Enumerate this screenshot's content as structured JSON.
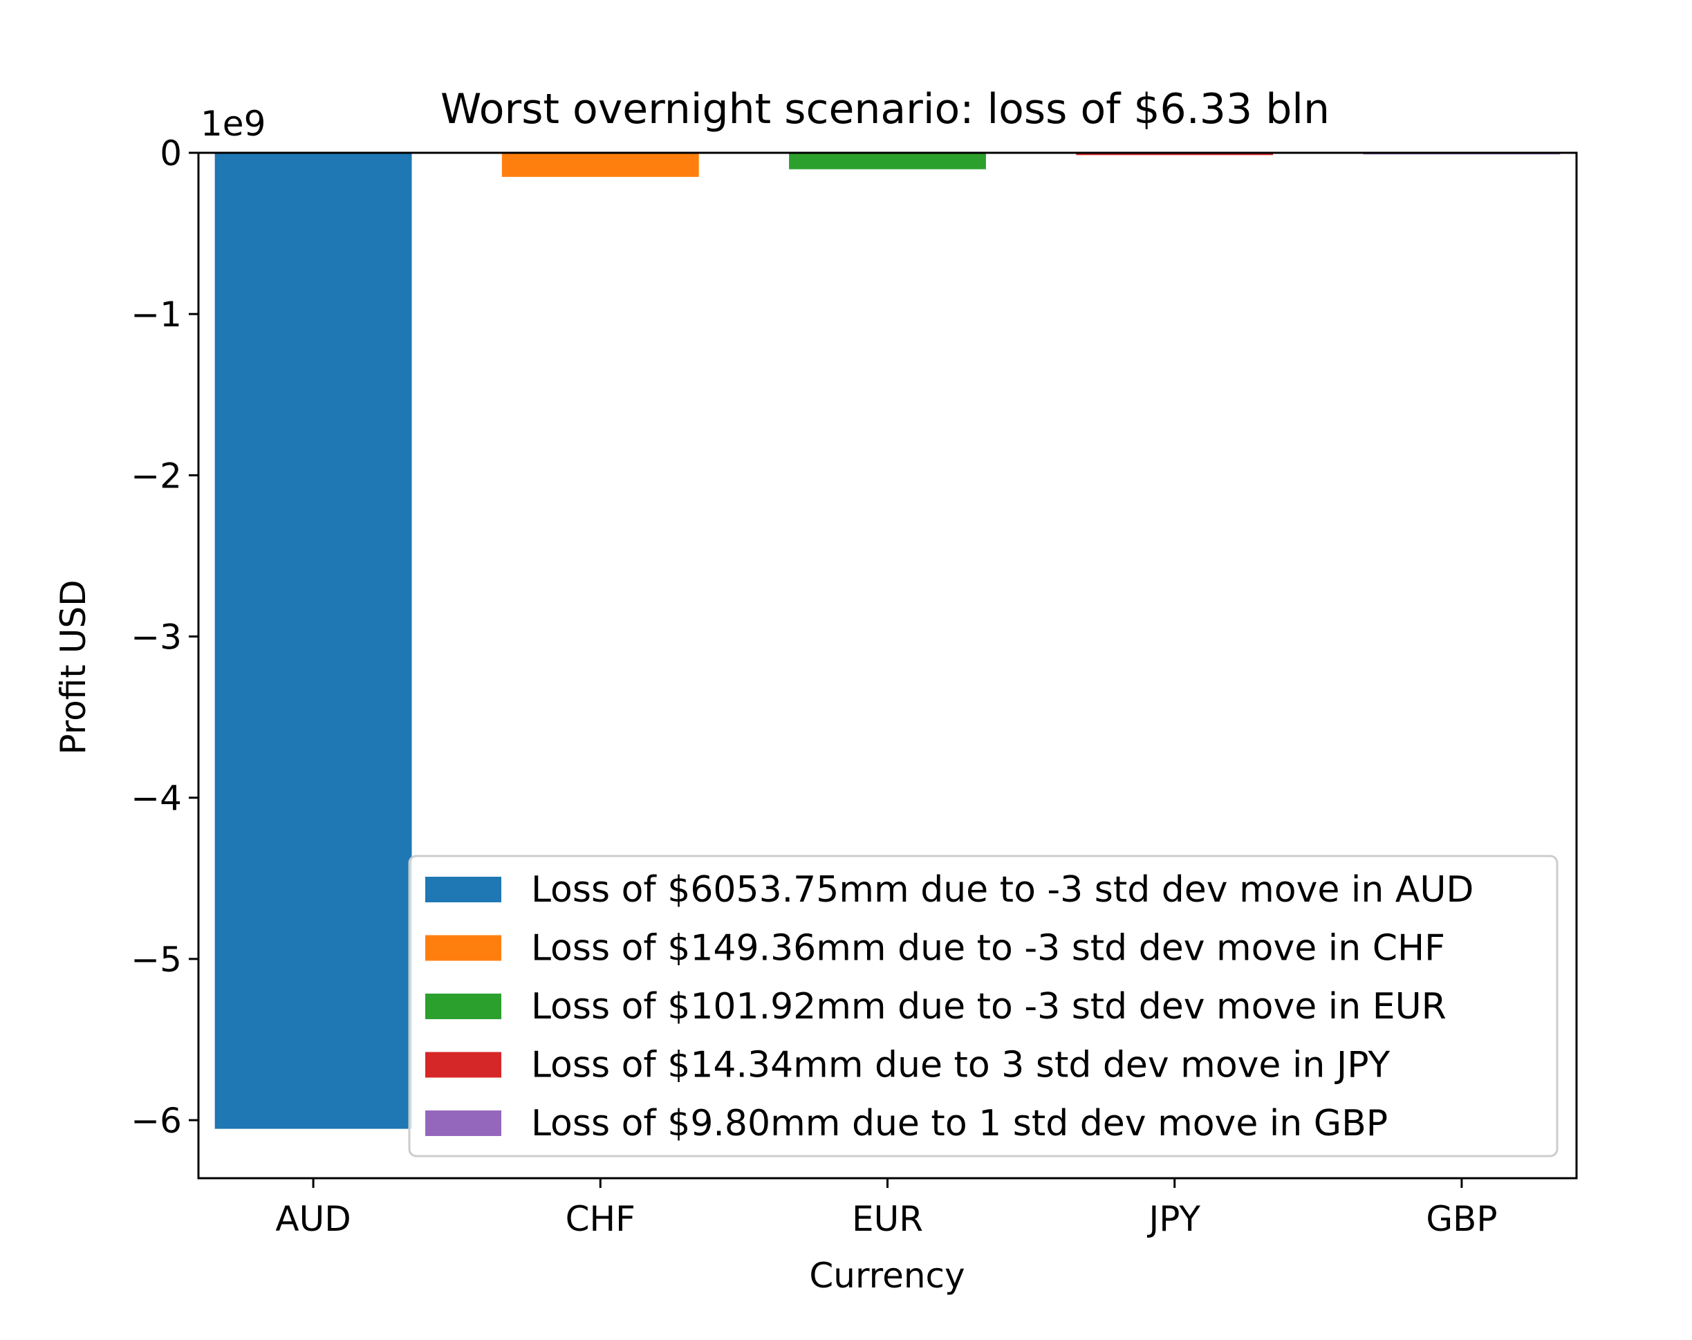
{
  "chart_data": {
    "type": "bar",
    "title": "Worst overnight scenario: loss of $6.33 bln",
    "xlabel": "Currency",
    "ylabel": "Profit USD",
    "y_scale_label": "1e9",
    "categories": [
      "AUD",
      "CHF",
      "EUR",
      "JPY",
      "GBP"
    ],
    "values": [
      -6053.75,
      -149.36,
      -101.92,
      -14.34,
      -9.8
    ],
    "value_units": "mm USD",
    "scale_divisor": 1000,
    "ylim": [
      -6.36,
      0
    ],
    "yticks": [
      0,
      -1,
      -2,
      -3,
      -4,
      -5,
      -6
    ],
    "ytick_labels": [
      "0",
      "−1",
      "−2",
      "−3",
      "−4",
      "−5",
      "−6"
    ],
    "colors": [
      "#1f77b4",
      "#ff7f0e",
      "#2ca02c",
      "#d62728",
      "#9467bd"
    ],
    "legend_position": "lower-right",
    "legend": [
      "Loss of $6053.75mm due to -3 std dev move in AUD",
      "Loss of $149.36mm due to -3 std dev move in CHF",
      "Loss of $101.92mm due to -3 std dev move in EUR",
      "Loss of $14.34mm due to 3 std dev move in JPY",
      "Loss of $9.80mm due to 1 std dev move in GBP"
    ],
    "grid": false
  }
}
